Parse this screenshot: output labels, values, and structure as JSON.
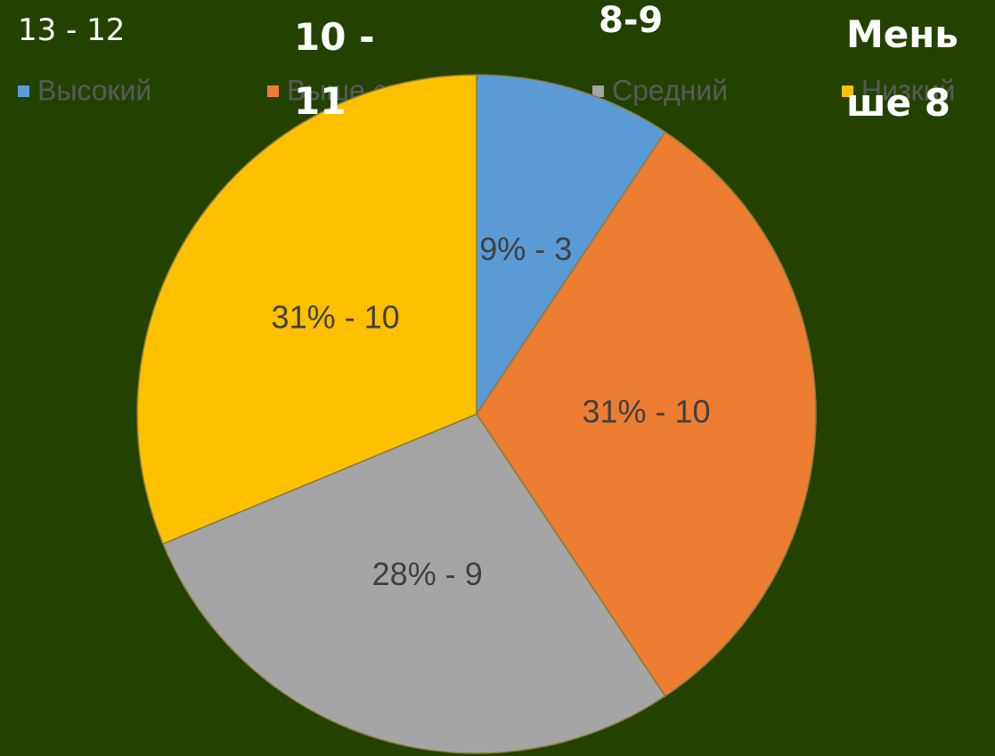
{
  "chart_data": {
    "type": "pie",
    "categories": [
      "Высокий",
      "Выше средн.",
      "Средний",
      "Низкий"
    ],
    "values": [
      3,
      10,
      9,
      10
    ],
    "value_labels": [
      "9% - 3",
      "31% - 10",
      "28% - 9",
      "31% - 10"
    ],
    "colors": [
      "#5b9bd5",
      "#ed7d31",
      "#a5a5a5",
      "#ffc000"
    ],
    "legend": "top",
    "annotations": [
      "13 - 12",
      "10 - 11",
      "8-9",
      "Меньше 8"
    ]
  }
}
